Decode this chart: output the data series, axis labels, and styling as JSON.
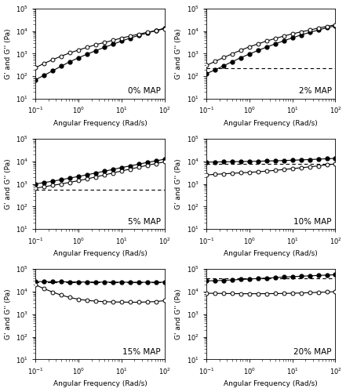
{
  "panels": [
    {
      "label": "0% MAP",
      "x": [
        0.1,
        0.158,
        0.251,
        0.398,
        0.631,
        1.0,
        1.585,
        2.512,
        3.981,
        6.31,
        10.0,
        15.85,
        25.12,
        39.81,
        63.1,
        100.0
      ],
      "G_prime": [
        70,
        110,
        175,
        280,
        440,
        660,
        950,
        1350,
        1900,
        2600,
        3600,
        4900,
        6400,
        8200,
        10500,
        13500
      ],
      "G_double_prime": [
        240,
        370,
        540,
        780,
        1080,
        1450,
        1900,
        2500,
        3100,
        3900,
        4900,
        6000,
        7300,
        8800,
        10500,
        12500
      ],
      "dashed_y": null,
      "ref_Gprime": 13500,
      "ylim": [
        10,
        100000
      ]
    },
    {
      "label": "2% MAP",
      "x": [
        0.1,
        0.158,
        0.251,
        0.398,
        0.631,
        1.0,
        1.585,
        2.512,
        3.981,
        6.31,
        10.0,
        15.85,
        25.12,
        39.81,
        63.1,
        100.0
      ],
      "G_prime": [
        130,
        190,
        290,
        440,
        660,
        960,
        1380,
        1950,
        2700,
        3700,
        5000,
        6700,
        8700,
        11000,
        14000,
        17000
      ],
      "G_double_prime": [
        300,
        450,
        670,
        980,
        1420,
        2000,
        2700,
        3600,
        4700,
        6000,
        7500,
        9200,
        11000,
        13500,
        16000,
        19000
      ],
      "dashed_y": 220,
      "ref_Gprime": 17000,
      "ylim": [
        10,
        100000
      ]
    },
    {
      "label": "5% MAP",
      "x": [
        0.1,
        0.158,
        0.251,
        0.398,
        0.631,
        1.0,
        1.585,
        2.512,
        3.981,
        6.31,
        10.0,
        15.85,
        25.12,
        39.81,
        63.1,
        100.0
      ],
      "G_prime": [
        1000,
        1150,
        1320,
        1550,
        1820,
        2150,
        2550,
        3050,
        3650,
        4400,
        5300,
        6300,
        7500,
        9000,
        10500,
        12500
      ],
      "G_double_prime": [
        650,
        750,
        870,
        1000,
        1180,
        1400,
        1680,
        2050,
        2500,
        3050,
        3750,
        4550,
        5500,
        6700,
        8000,
        9500
      ],
      "dashed_y": 550,
      "ref_Gprime": 12500,
      "ylim": [
        10,
        100000
      ]
    },
    {
      "label": "10% MAP",
      "x": [
        0.1,
        0.158,
        0.251,
        0.398,
        0.631,
        1.0,
        1.585,
        2.512,
        3.981,
        6.31,
        10.0,
        15.85,
        25.12,
        39.81,
        63.1,
        100.0
      ],
      "G_prime": [
        9200,
        9350,
        9500,
        9650,
        9800,
        9950,
        10100,
        10350,
        10600,
        10900,
        11200,
        11600,
        12000,
        12500,
        13000,
        13500
      ],
      "G_double_prime": [
        2500,
        2650,
        2800,
        2950,
        3100,
        3250,
        3450,
        3700,
        4000,
        4350,
        4750,
        5200,
        5700,
        6300,
        7000,
        7700
      ],
      "dashed_y": 8000,
      "ref_Gprime": 13500,
      "ylim": [
        10,
        100000
      ]
    },
    {
      "label": "15% MAP",
      "x": [
        0.1,
        0.158,
        0.251,
        0.398,
        0.631,
        1.0,
        1.585,
        2.512,
        3.981,
        6.31,
        10.0,
        15.85,
        25.12,
        39.81,
        63.1,
        100.0
      ],
      "G_prime": [
        28000,
        27800,
        27500,
        27200,
        27000,
        26800,
        26600,
        26500,
        26400,
        26300,
        26200,
        26100,
        26000,
        26000,
        26100,
        26300
      ],
      "G_double_prime": [
        20000,
        13500,
        9500,
        7000,
        5500,
        4600,
        4100,
        3800,
        3600,
        3500,
        3450,
        3400,
        3400,
        3500,
        3650,
        4000
      ],
      "dashed_y": 27000,
      "ref_Gprime": 26300,
      "ylim": [
        10,
        100000
      ]
    },
    {
      "label": "20% MAP",
      "x": [
        0.1,
        0.158,
        0.251,
        0.398,
        0.631,
        1.0,
        1.585,
        2.512,
        3.981,
        6.31,
        10.0,
        15.85,
        25.12,
        39.81,
        63.1,
        100.0
      ],
      "G_prime": [
        30000,
        30500,
        31500,
        33000,
        34500,
        36000,
        38000,
        40000,
        42000,
        44000,
        46000,
        48000,
        50000,
        52000,
        54000,
        56000
      ],
      "G_double_prime": [
        8500,
        8400,
        8300,
        8200,
        8100,
        8100,
        8100,
        8150,
        8200,
        8300,
        8500,
        8700,
        9000,
        9300,
        9600,
        10000
      ],
      "dashed_y": 40000,
      "ref_Gprime": 56000,
      "ylim": [
        10,
        100000
      ]
    }
  ],
  "xlabel": "Angular Frequency (Rad/s)",
  "ylabel_left": "G' and G'' (Pa)",
  "ylabel_right": "G' and G'' (Pa)",
  "xlim": [
    0.1,
    100
  ],
  "markersize": 3.5,
  "linewidth": 0.8,
  "color": "black",
  "fontsize_label": 6.5,
  "fontsize_tick": 6,
  "fontsize_annot": 7.5
}
